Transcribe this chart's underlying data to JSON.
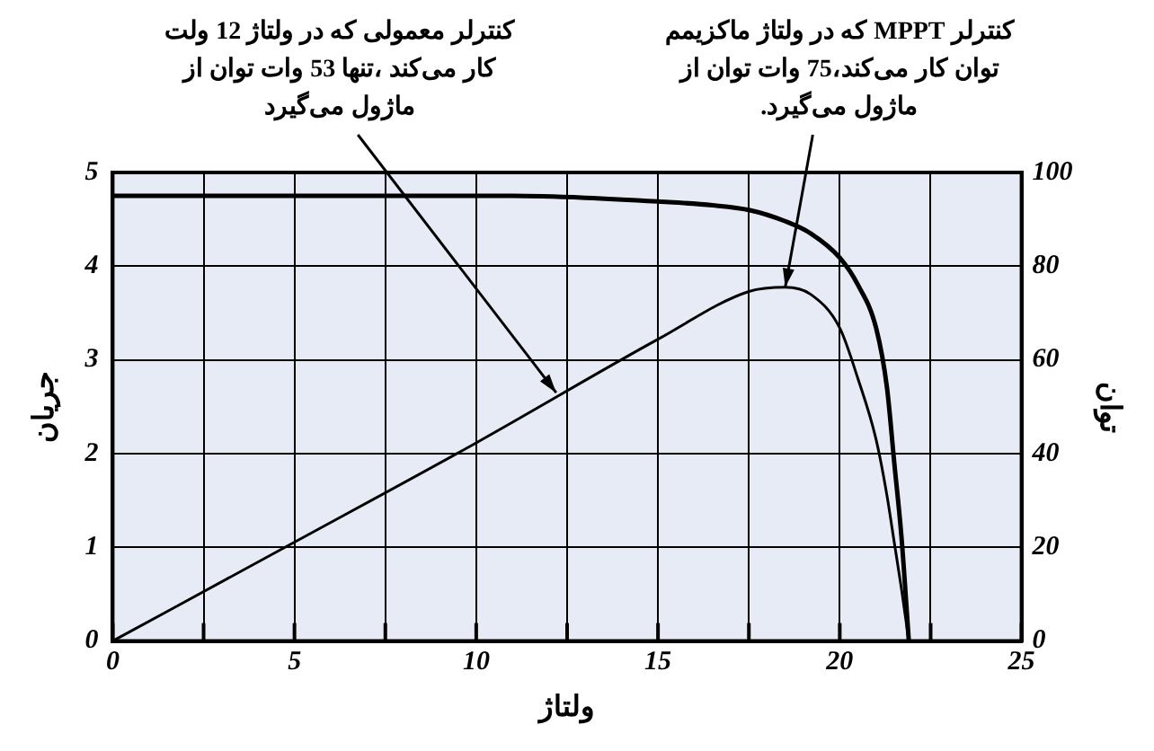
{
  "chart_data": {
    "type": "line",
    "xlabel": "ولتاژ",
    "ylabel": "جریان",
    "y2label": "توان",
    "x": [
      0,
      5,
      10,
      11,
      13,
      15,
      16.5,
      17.5,
      18.5,
      19.2,
      20,
      20.5,
      21,
      21.3,
      21.5,
      21.7,
      21.9
    ],
    "series": [
      {
        "color": "#000000",
        "values": [
          4.75,
          4.75,
          4.75,
          4.75,
          4.73,
          4.69,
          4.65,
          4.6,
          4.48,
          4.35,
          4.09,
          3.8,
          3.34,
          2.7,
          1.9,
          1.1,
          0
        ]
      },
      {
        "color": "#000000",
        "axis": "y2",
        "x": [
          0,
          5,
          10,
          15,
          17.5,
          18.5,
          19.2,
          20,
          20.5,
          21,
          21.3,
          21.5,
          21.7,
          21.9
        ],
        "values": [
          0,
          21.1,
          42.3,
          64.4,
          74.6,
          75.5,
          74,
          66.8,
          56,
          43,
          31,
          21,
          11,
          0
        ]
      }
    ],
    "xlim": [
      0,
      25
    ],
    "xticks": [
      0,
      {
        "value": 2.5,
        "label": null
      },
      5,
      {
        "value": 7.5,
        "label": null
      },
      10,
      {
        "value": 12.5,
        "label": null
      },
      15,
      {
        "value": 17.5,
        "label": null
      },
      20,
      {
        "value": 22.5,
        "label": null
      },
      25
    ],
    "ylim": [
      0,
      5
    ],
    "yticks": [
      0,
      1,
      2,
      3,
      4,
      5
    ],
    "y2lim": [
      0,
      100
    ],
    "y2ticks": [
      0,
      20,
      40,
      60,
      80,
      100
    ],
    "grid": true,
    "legend": false,
    "marker": "none",
    "line_style": "solid",
    "annotations": [
      {
        "text": "کنترلر معمولی که در ولتاژ 12 ولت\nکار می‌کند ،تنها 53 وات توان از\nماژول می‌گیرد",
        "x": 12.2,
        "y": 2.65
      },
      {
        "text": "کنترلر MPPT که در ولتاژ ماکزیمم\nتوان کار می‌کند،75 وات توان از\nماژول می‌گیرد.",
        "x": 18.5,
        "y": 3.775
      }
    ]
  }
}
